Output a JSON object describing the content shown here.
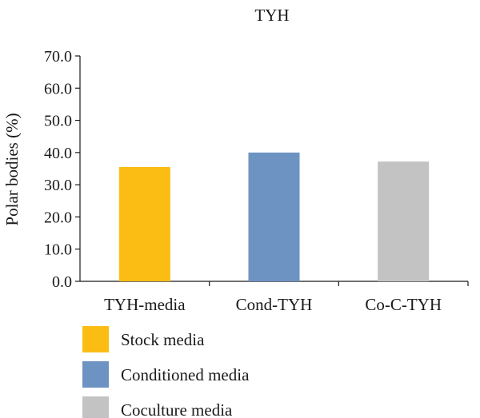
{
  "chart_data": {
    "type": "bar",
    "title": "TYH",
    "xlabel": "",
    "ylabel": "Polar bodies (%)",
    "ylim": [
      0,
      70
    ],
    "yticks": [
      "0.0",
      "10.0",
      "20.0",
      "30.0",
      "40.0",
      "50.0",
      "60.0",
      "70.0"
    ],
    "categories": [
      "TYH-media",
      "Cond-TYH",
      "Co-C-TYH"
    ],
    "values": [
      35.5,
      40.0,
      37.2
    ],
    "bar_colors": [
      "#FBBD14",
      "#6D93C2",
      "#C3C3C3"
    ],
    "grid": false,
    "legend_position": "bottom-left",
    "legend": [
      {
        "label": "Stock media",
        "color": "#FBBD14"
      },
      {
        "label": "Conditioned media",
        "color": "#6D93C2"
      },
      {
        "label": "Coculture media",
        "color": "#C3C3C3"
      }
    ]
  }
}
